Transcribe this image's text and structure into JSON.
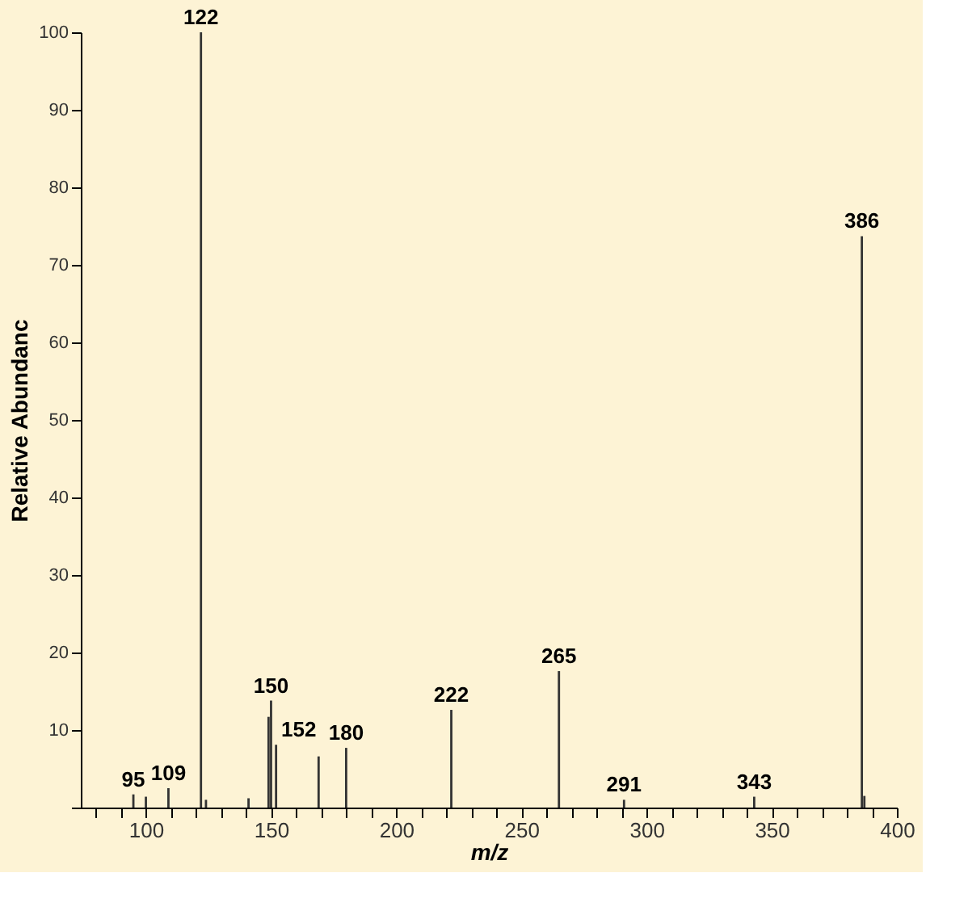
{
  "chart_data": {
    "type": "bar",
    "xlabel": "m/z",
    "ylabel": "Relative Abundanc",
    "color": "#333333",
    "x": [
      95,
      100,
      109,
      122,
      124,
      141,
      149,
      150,
      152,
      169,
      180,
      222,
      265,
      291,
      343,
      386,
      387
    ],
    "values": [
      1.7,
      1.4,
      2.5,
      100,
      1.0,
      1.2,
      11.7,
      13.8,
      8.1,
      6.6,
      7.7,
      12.6,
      17.6,
      1.0,
      1.4,
      73.7,
      1.5
    ],
    "annotations": [
      {
        "text": "95",
        "x": 95,
        "y": 1.7
      },
      {
        "text": "109",
        "x": 109,
        "y": 2.5
      },
      {
        "text": "122",
        "x": 122,
        "y": 100
      },
      {
        "text": "150",
        "x": 150,
        "y": 13.8
      },
      {
        "text": "152",
        "x": 152,
        "y": 8.1
      },
      {
        "text": "180",
        "x": 180,
        "y": 7.7
      },
      {
        "text": "222",
        "x": 222,
        "y": 12.6
      },
      {
        "text": "265",
        "x": 265,
        "y": 17.6
      },
      {
        "text": "291",
        "x": 291,
        "y": 1.0
      },
      {
        "text": "343",
        "x": 343,
        "y": 1.4
      },
      {
        "text": "386",
        "x": 386,
        "y": 73.7
      }
    ],
    "xlim": [
      74,
      400
    ],
    "xticks": [
      {
        "value": 80,
        "label": null
      },
      {
        "value": 90,
        "label": null
      },
      100,
      {
        "value": 110,
        "label": null
      },
      {
        "value": 120,
        "label": null
      },
      {
        "value": 130,
        "label": null
      },
      {
        "value": 140,
        "label": null
      },
      150,
      {
        "value": 160,
        "label": null
      },
      {
        "value": 170,
        "label": null
      },
      {
        "value": 180,
        "label": null
      },
      {
        "value": 190,
        "label": null
      },
      200,
      {
        "value": 210,
        "label": null
      },
      {
        "value": 220,
        "label": null
      },
      {
        "value": 230,
        "label": null
      },
      {
        "value": 240,
        "label": null
      },
      250,
      {
        "value": 260,
        "label": null
      },
      {
        "value": 270,
        "label": null
      },
      {
        "value": 280,
        "label": null
      },
      {
        "value": 290,
        "label": null
      },
      300,
      {
        "value": 310,
        "label": null
      },
      {
        "value": 320,
        "label": null
      },
      {
        "value": 330,
        "label": null
      },
      {
        "value": 340,
        "label": null
      },
      350,
      {
        "value": 360,
        "label": null
      },
      {
        "value": 370,
        "label": null
      },
      {
        "value": 380,
        "label": null
      },
      {
        "value": 390,
        "label": null
      },
      400
    ],
    "ylim": [
      0,
      100
    ],
    "yticks": [
      {
        "value": 0,
        "label": null
      },
      10,
      20,
      30,
      40,
      50,
      60,
      70,
      80,
      90,
      100
    ],
    "grid": false
  }
}
